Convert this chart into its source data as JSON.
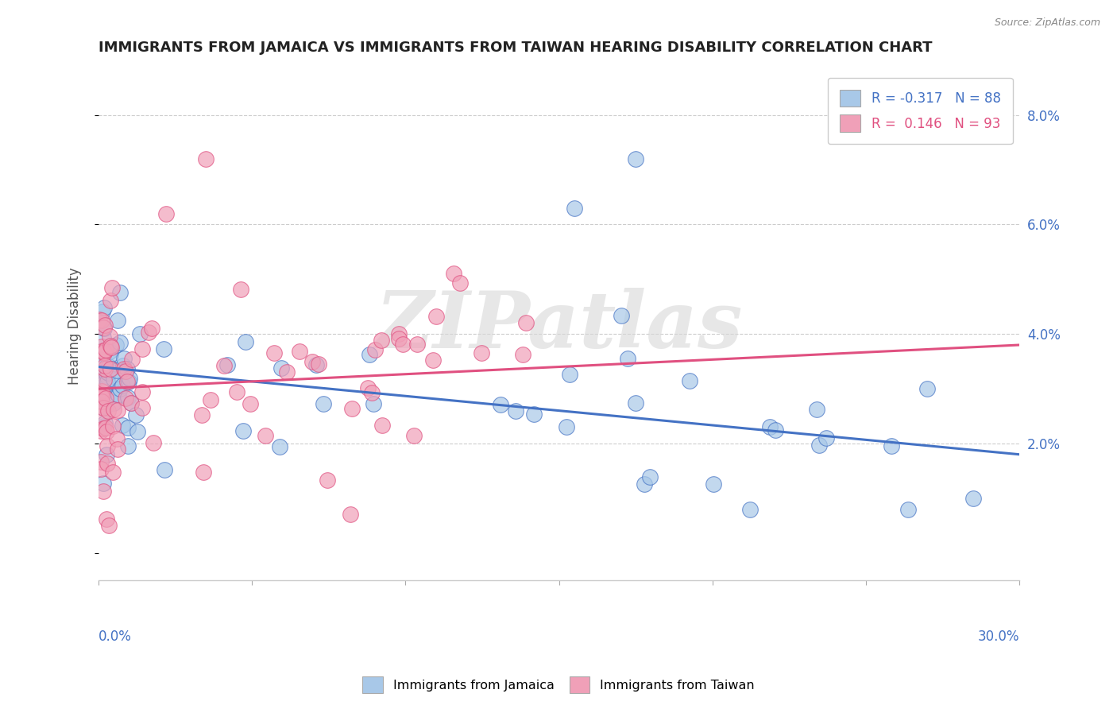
{
  "title": "IMMIGRANTS FROM JAMAICA VS IMMIGRANTS FROM TAIWAN HEARING DISABILITY CORRELATION CHART",
  "source": "Source: ZipAtlas.com",
  "ylabel": "Hearing Disability",
  "y_ticks": [
    0.0,
    0.02,
    0.04,
    0.06,
    0.08
  ],
  "y_tick_labels": [
    "",
    "2.0%",
    "4.0%",
    "6.0%",
    "8.0%"
  ],
  "x_lim": [
    0.0,
    0.3
  ],
  "y_lim": [
    -0.005,
    0.088
  ],
  "legend1_r": "-0.317",
  "legend1_n": "88",
  "legend2_r": "0.146",
  "legend2_n": "93",
  "color_jamaica": "#a8c8e8",
  "color_taiwan": "#f0a0b8",
  "color_jamaica_line": "#4472c4",
  "color_taiwan_line": "#e05080",
  "watermark": "ZIPatlas",
  "watermark_color": "#d8d8d8"
}
